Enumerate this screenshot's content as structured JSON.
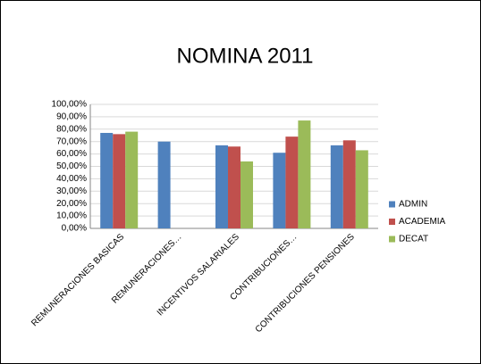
{
  "chart_data": {
    "type": "bar",
    "title": "NOMINA 2011",
    "categories": [
      "REMUNERACIONES BASICAS",
      "REMUNERACIONES…",
      "INCENTIVOS SALARIALES",
      "CONTRIBUCIONES…",
      "CONTRIBUCIONES PENSIONES"
    ],
    "series": [
      {
        "name": "ADMIN",
        "color": "#4f81bd",
        "values": [
          77,
          70,
          67,
          61,
          67
        ]
      },
      {
        "name": "ACADEMIA",
        "color": "#c0504d",
        "values": [
          76,
          null,
          66,
          74,
          71
        ]
      },
      {
        "name": "DECAT",
        "color": "#9bbb59",
        "values": [
          78,
          null,
          54,
          87,
          63
        ]
      }
    ],
    "ylim": [
      0,
      100
    ],
    "yticks": [
      {
        "value": 0,
        "label": "0,00%"
      },
      {
        "value": 10,
        "label": "10,00%"
      },
      {
        "value": 20,
        "label": "20,00%"
      },
      {
        "value": 30,
        "label": "30,00%"
      },
      {
        "value": 40,
        "label": "40,00%"
      },
      {
        "value": 50,
        "label": "50,00%"
      },
      {
        "value": 60,
        "label": "60,00%"
      },
      {
        "value": 70,
        "label": "70,00%"
      },
      {
        "value": 80,
        "label": "80,00%"
      },
      {
        "value": 90,
        "label": "90,00%"
      },
      {
        "value": 100,
        "label": "100,00%"
      }
    ],
    "grid": true,
    "legend": "right"
  }
}
